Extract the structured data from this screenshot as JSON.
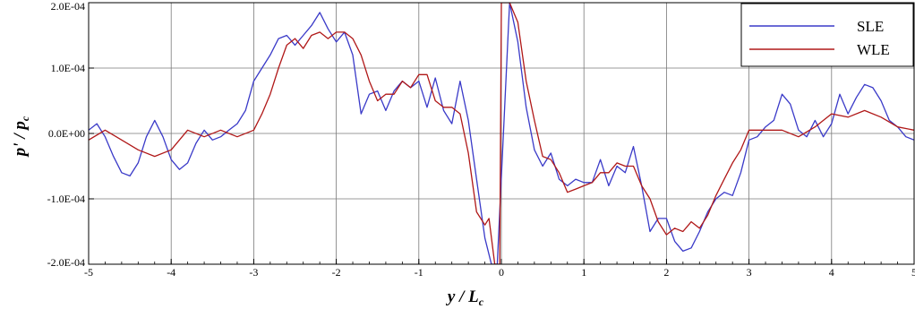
{
  "chart_data": {
    "type": "line",
    "title": "",
    "xlabel": {
      "main": "y / L",
      "sub": "c"
    },
    "ylabel": {
      "main": "p' / p",
      "sub": "c"
    },
    "xlim": [
      -5,
      5
    ],
    "ylim": [
      -0.0002,
      0.0002
    ],
    "x_ticks": [
      -5,
      -4,
      -3,
      -2,
      -1,
      0,
      1,
      2,
      3,
      4,
      5
    ],
    "x_tick_labels": [
      "-5",
      "-4",
      "-3",
      "-2",
      "-1",
      "0",
      "1",
      "2",
      "3",
      "4",
      "5"
    ],
    "y_ticks": [
      -0.0002,
      -0.0001,
      0,
      0.0001,
      0.0002
    ],
    "y_tick_labels": [
      "-2.0E-04",
      "-1.0E-04",
      "0.0E+00",
      "1.0E-04",
      "2.0E-04"
    ],
    "grid": true,
    "legend_position": "top-right",
    "series": [
      {
        "name": "SLE",
        "color": "#3a3ac8",
        "x": [
          -5.0,
          -4.9,
          -4.8,
          -4.7,
          -4.6,
          -4.5,
          -4.4,
          -4.3,
          -4.2,
          -4.1,
          -4.0,
          -3.9,
          -3.8,
          -3.7,
          -3.6,
          -3.5,
          -3.4,
          -3.3,
          -3.2,
          -3.1,
          -3.0,
          -2.9,
          -2.8,
          -2.7,
          -2.6,
          -2.5,
          -2.4,
          -2.3,
          -2.2,
          -2.1,
          -2.0,
          -1.9,
          -1.8,
          -1.7,
          -1.6,
          -1.5,
          -1.4,
          -1.3,
          -1.2,
          -1.1,
          -1.0,
          -0.9,
          -0.8,
          -0.7,
          -0.6,
          -0.5,
          -0.4,
          -0.3,
          -0.2,
          -0.12,
          -0.05,
          0.1,
          0.2,
          0.3,
          0.4,
          0.5,
          0.6,
          0.7,
          0.8,
          0.9,
          1.0,
          1.1,
          1.2,
          1.3,
          1.4,
          1.5,
          1.6,
          1.7,
          1.8,
          1.9,
          2.0,
          2.1,
          2.2,
          2.3,
          2.4,
          2.5,
          2.6,
          2.7,
          2.8,
          2.9,
          3.0,
          3.1,
          3.2,
          3.3,
          3.4,
          3.5,
          3.6,
          3.7,
          3.8,
          3.9,
          4.0,
          4.1,
          4.2,
          4.3,
          4.4,
          4.5,
          4.6,
          4.7,
          4.8,
          4.9,
          5.0
        ],
        "y": [
          5e-06,
          1.5e-05,
          -5e-06,
          -3.5e-05,
          -6e-05,
          -6.5e-05,
          -4.5e-05,
          -5e-06,
          2e-05,
          -5e-06,
          -4e-05,
          -5.5e-05,
          -4.5e-05,
          -1.5e-05,
          5e-06,
          -1e-05,
          -5e-06,
          5e-06,
          1.5e-05,
          3.5e-05,
          8e-05,
          0.0001,
          0.00012,
          0.000145,
          0.00015,
          0.000135,
          0.00015,
          0.000165,
          0.000185,
          0.00016,
          0.00014,
          0.000155,
          0.00012,
          3e-05,
          6e-05,
          6.5e-05,
          3.5e-05,
          6.5e-05,
          8e-05,
          7e-05,
          8e-05,
          4e-05,
          8.5e-05,
          3.5e-05,
          1.5e-05,
          8e-05,
          2e-05,
          -7e-05,
          -0.00016,
          -0.0002,
          -0.0002,
          0.0002,
          0.00014,
          4e-05,
          -2.5e-05,
          -5e-05,
          -3e-05,
          -7e-05,
          -8e-05,
          -7e-05,
          -7.5e-05,
          -7.5e-05,
          -4e-05,
          -8e-05,
          -5e-05,
          -6e-05,
          -2e-05,
          -8e-05,
          -0.00015,
          -0.00013,
          -0.00013,
          -0.000165,
          -0.00018,
          -0.000175,
          -0.00015,
          -0.00012,
          -0.0001,
          -9e-05,
          -9.5e-05,
          -6e-05,
          -1e-05,
          -5e-06,
          1e-05,
          2e-05,
          6e-05,
          4.5e-05,
          5e-06,
          -5e-06,
          2e-05,
          -5e-06,
          1.5e-05,
          6e-05,
          3e-05,
          5.5e-05,
          7.5e-05,
          7e-05,
          5e-05,
          2e-05,
          1e-05,
          -5e-06,
          -1e-05
        ]
      },
      {
        "name": "WLE",
        "color": "#b01818",
        "x": [
          -5.0,
          -4.8,
          -4.6,
          -4.4,
          -4.2,
          -4.0,
          -3.8,
          -3.6,
          -3.4,
          -3.2,
          -3.0,
          -2.9,
          -2.8,
          -2.7,
          -2.6,
          -2.5,
          -2.4,
          -2.3,
          -2.2,
          -2.1,
          -2.0,
          -1.9,
          -1.8,
          -1.7,
          -1.6,
          -1.5,
          -1.4,
          -1.3,
          -1.2,
          -1.1,
          -1.0,
          -0.9,
          -0.8,
          -0.7,
          -0.6,
          -0.5,
          -0.4,
          -0.3,
          -0.2,
          -0.15,
          -0.08,
          -0.02,
          0.0,
          0.02,
          0.1,
          0.2,
          0.3,
          0.4,
          0.5,
          0.6,
          0.7,
          0.8,
          0.9,
          1.0,
          1.1,
          1.2,
          1.3,
          1.4,
          1.5,
          1.6,
          1.7,
          1.8,
          1.9,
          2.0,
          2.1,
          2.2,
          2.3,
          2.4,
          2.5,
          2.6,
          2.7,
          2.8,
          2.9,
          3.0,
          3.2,
          3.4,
          3.6,
          3.8,
          4.0,
          4.2,
          4.4,
          4.6,
          4.8,
          5.0
        ],
        "y": [
          -1e-05,
          5e-06,
          -1e-05,
          -2.5e-05,
          -3.5e-05,
          -2.5e-05,
          5e-06,
          -5e-06,
          5e-06,
          -5e-06,
          5e-06,
          3e-05,
          6e-05,
          0.0001,
          0.000135,
          0.000145,
          0.00013,
          0.00015,
          0.000155,
          0.000145,
          0.000155,
          0.000155,
          0.000145,
          0.00012,
          8e-05,
          5e-05,
          6e-05,
          6e-05,
          8e-05,
          7e-05,
          9e-05,
          9e-05,
          5e-05,
          4e-05,
          4e-05,
          3e-05,
          -3e-05,
          -0.00012,
          -0.00014,
          -0.00013,
          -0.0002,
          -0.0002,
          0.0002,
          0.0002,
          0.0002,
          0.00017,
          8e-05,
          2e-05,
          -3.5e-05,
          -4e-05,
          -6e-05,
          -9e-05,
          -8.5e-05,
          -8e-05,
          -7.5e-05,
          -6e-05,
          -6e-05,
          -4.5e-05,
          -5e-05,
          -5e-05,
          -8e-05,
          -0.0001,
          -0.000135,
          -0.000155,
          -0.000145,
          -0.00015,
          -0.000135,
          -0.000145,
          -0.000125,
          -9.5e-05,
          -7e-05,
          -4.5e-05,
          -2.5e-05,
          5e-06,
          5e-06,
          5e-06,
          -5e-06,
          1e-05,
          3e-05,
          2.5e-05,
          3.5e-05,
          2.5e-05,
          1e-05,
          5e-06
        ]
      }
    ]
  }
}
